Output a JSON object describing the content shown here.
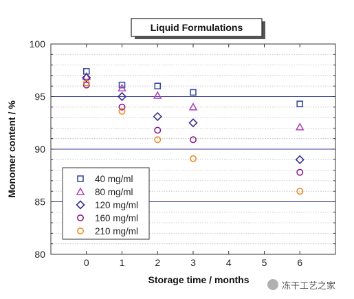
{
  "chart_data": {
    "type": "scatter",
    "title": "Liquid Formulations",
    "xlabel": "Storage time / months",
    "ylabel": "Monomer content / %",
    "xlim": [
      -1,
      7
    ],
    "ylim": [
      80,
      100
    ],
    "x_ticks": [
      0,
      1,
      2,
      3,
      4,
      5,
      6
    ],
    "y_ticks": [
      80,
      85,
      90,
      95,
      100
    ],
    "major_gridlines_y": [
      85,
      90,
      95
    ],
    "minor_gridlines_y": [
      81,
      82,
      83,
      84,
      86,
      87,
      88,
      89,
      91,
      92,
      93,
      94,
      96,
      97,
      98,
      99
    ],
    "legend_position": "bottom-left",
    "series": [
      {
        "name": "40 mg/ml",
        "marker": "square",
        "color": "#3a4b9c",
        "x": [
          0,
          1,
          2,
          3,
          6
        ],
        "y": [
          97.4,
          96.1,
          96.0,
          95.4,
          94.3
        ]
      },
      {
        "name": "80 mg/ml",
        "marker": "triangle",
        "color": "#b048b8",
        "x": [
          0,
          1,
          2,
          3,
          6
        ],
        "y": [
          96.9,
          95.8,
          95.1,
          94.0,
          92.1
        ]
      },
      {
        "name": "120 mg/ml",
        "marker": "diamond",
        "color": "#3b2f8f",
        "x": [
          0,
          1,
          2,
          3,
          6
        ],
        "y": [
          96.8,
          95.0,
          93.1,
          92.5,
          89.0
        ]
      },
      {
        "name": "160 mg/ml",
        "marker": "circle",
        "color": "#8b1a8b",
        "x": [
          0,
          1,
          2,
          3,
          6
        ],
        "y": [
          96.1,
          94.0,
          91.8,
          90.9,
          87.8
        ]
      },
      {
        "name": "210 mg/ml",
        "marker": "circle",
        "color": "#f08a24",
        "x": [
          0,
          1,
          2,
          3,
          6
        ],
        "y": [
          96.3,
          93.6,
          90.9,
          89.1,
          86.0
        ]
      }
    ]
  },
  "watermark": {
    "text": "冻干工艺之家",
    "icon": "wechat-icon"
  }
}
